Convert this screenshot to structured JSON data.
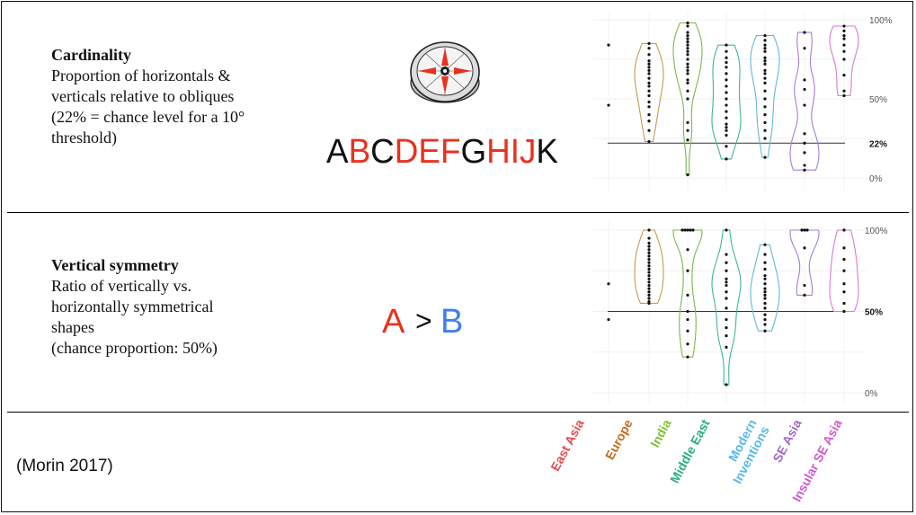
{
  "citation": "(Morin 2017)",
  "colors": {
    "red": "#e8321e",
    "blue": "#3e7ef0",
    "black": "#111111"
  },
  "section1": {
    "title": "Cardinality",
    "lines": [
      "Proportion of horizontals &",
      "verticals relative to obliques",
      "(22% = chance level for a 10°",
      "threshold)"
    ],
    "letters": [
      {
        "ch": "A",
        "color": "#111111"
      },
      {
        "ch": "B",
        "color": "#e8321e"
      },
      {
        "ch": "C",
        "color": "#111111"
      },
      {
        "ch": "D",
        "color": "#e8321e"
      },
      {
        "ch": "E",
        "color": "#e8321e"
      },
      {
        "ch": "F",
        "color": "#e8321e"
      },
      {
        "ch": "G",
        "color": "#111111"
      },
      {
        "ch": "H",
        "color": "#e8321e"
      },
      {
        "ch": "I",
        "color": "#e8321e"
      },
      {
        "ch": "J",
        "color": "#e8321e"
      },
      {
        "ch": "K",
        "color": "#111111"
      }
    ]
  },
  "section2": {
    "title": "Vertical symmetry",
    "lines": [
      "Ratio of vertically vs.",
      "horizontally symmetrical",
      "shapes",
      "(chance proportion: 50%)"
    ],
    "compare": {
      "left": "A",
      "op": ">",
      "right": "B"
    }
  },
  "chart_data": [
    {
      "type": "violin",
      "ylim": [
        0,
        100
      ],
      "ticks": [
        {
          "value": 100,
          "label": "100%"
        },
        {
          "value": 50,
          "label": "50%"
        },
        {
          "value": 0,
          "label": "0%"
        }
      ],
      "reference": {
        "value": 22,
        "label": "22%"
      },
      "series": [
        {
          "name": "East Asia",
          "color": "#e0584e",
          "values": [
            84,
            46
          ]
        },
        {
          "name": "Europe",
          "color": "#c79a4a",
          "values": [
            85,
            82,
            78,
            74,
            72,
            70,
            68,
            66,
            63,
            60,
            58,
            55,
            52,
            48,
            45,
            40,
            36,
            30,
            23
          ]
        },
        {
          "name": "India",
          "color": "#7ab84a",
          "values": [
            98,
            96,
            92,
            90,
            88,
            86,
            84,
            82,
            80,
            78,
            75,
            72,
            70,
            68,
            66,
            62,
            60,
            55,
            50,
            35,
            30,
            24,
            2
          ]
        },
        {
          "name": "Middle East",
          "color": "#3fb59a",
          "values": [
            84,
            80,
            76,
            73,
            70,
            66,
            62,
            58,
            54,
            50,
            46,
            42,
            38,
            34,
            32,
            30,
            27,
            20,
            12
          ]
        },
        {
          "name": "Modern Inventions",
          "color": "#5fb8dd",
          "values": [
            90,
            87,
            84,
            82,
            80,
            76,
            74,
            72,
            68,
            66,
            63,
            60,
            55,
            50,
            45,
            40,
            35,
            30,
            25,
            13
          ]
        },
        {
          "name": "SE Asia",
          "color": "#a57fd2",
          "values": [
            92,
            82,
            62,
            56,
            46,
            28,
            22,
            16,
            8,
            5
          ]
        },
        {
          "name": "Insular SE Asia",
          "color": "#d77bd3",
          "values": [
            96,
            93,
            90,
            88,
            84,
            80,
            75,
            65,
            55,
            52
          ]
        }
      ]
    },
    {
      "type": "violin",
      "ylim": [
        0,
        100
      ],
      "ticks": [
        {
          "value": 100,
          "label": "100%"
        },
        {
          "value": 0,
          "label": "0%"
        }
      ],
      "reference": {
        "value": 50,
        "label": "50%"
      },
      "series": [
        {
          "name": "East Asia",
          "color": "#e0584e",
          "values": [
            67,
            45
          ]
        },
        {
          "name": "Europe",
          "color": "#c79a4a",
          "values": [
            100,
            95,
            92,
            90,
            88,
            86,
            84,
            82,
            80,
            78,
            76,
            74,
            72,
            70,
            68,
            66,
            64,
            62,
            60,
            58,
            56,
            55
          ]
        },
        {
          "name": "India",
          "color": "#7ab84a",
          "values": [
            100,
            100,
            100,
            100,
            100,
            88,
            75,
            60,
            50,
            45,
            38,
            30,
            22
          ]
        },
        {
          "name": "Middle East",
          "color": "#3fb59a",
          "values": [
            100,
            85,
            80,
            75,
            70,
            68,
            66,
            62,
            58,
            52,
            45,
            40,
            35,
            28,
            5
          ]
        },
        {
          "name": "Modern Inventions",
          "color": "#5fb8dd",
          "values": [
            91,
            85,
            80,
            76,
            72,
            70,
            67,
            64,
            62,
            60,
            58,
            55,
            52,
            48,
            45,
            42,
            38
          ]
        },
        {
          "name": "SE Asia",
          "color": "#a57fd2",
          "values": [
            100,
            100,
            100,
            89,
            66,
            60
          ]
        },
        {
          "name": "Insular SE Asia",
          "color": "#d77bd3",
          "values": [
            100,
            89,
            82,
            75,
            67,
            62,
            55,
            50
          ]
        }
      ]
    }
  ],
  "category_labels": [
    {
      "name": "East Asia",
      "color": "#e8494d"
    },
    {
      "name": "Europe",
      "color": "#c96a1c"
    },
    {
      "name": "India",
      "color": "#7bbf38"
    },
    {
      "name": "Middle East",
      "color": "#27b07e"
    },
    {
      "name": "Modern\nInventions",
      "color": "#58b8e8"
    },
    {
      "name": "SE Asia",
      "color": "#a168cc"
    },
    {
      "name": "Insular SE Asia",
      "color": "#d25ad2"
    }
  ]
}
